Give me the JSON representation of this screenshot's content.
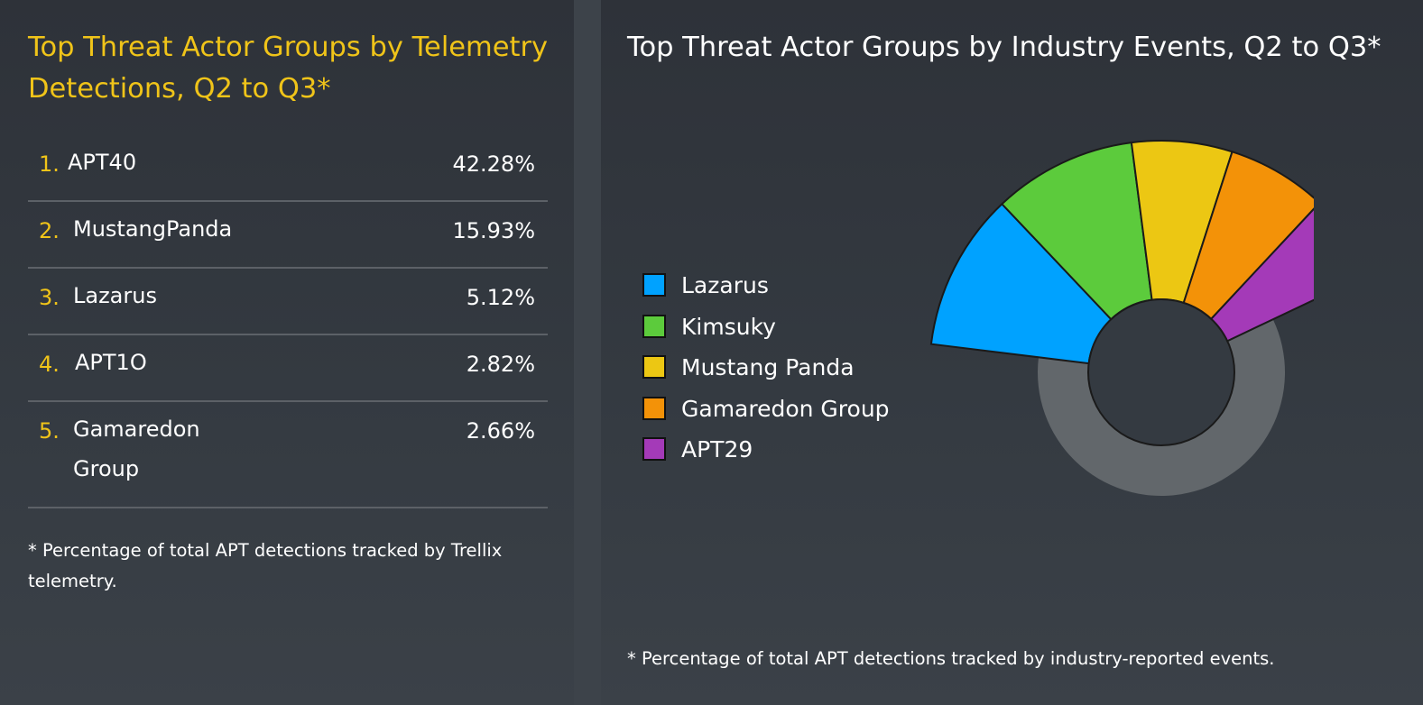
{
  "left": {
    "title": "Top Threat Actor Groups by Telemetry Detections, Q2 to Q3*",
    "rows": [
      {
        "rank": "1.",
        "name": "APT40",
        "value": "42.28%"
      },
      {
        "rank": "2.",
        "name": "MustangPanda",
        "value": "15.93%"
      },
      {
        "rank": "3.",
        "name": "Lazarus",
        "value": "5.12%"
      },
      {
        "rank": "4.",
        "name": "APT1O",
        "value": "2.82%"
      },
      {
        "rank": "5.",
        "name": "Gamaredon Group",
        "value": "2.66%"
      }
    ],
    "footnote": "* Percentage of total APT detections tracked by Trellix telemetry."
  },
  "right": {
    "title": "Top Threat Actor Groups by Industry Events, Q2 to Q3*",
    "footnote": "* Percentage of total APT detections tracked by industry-reported events."
  },
  "colors": {
    "accent": "#f0c419",
    "remainder": "#62676b"
  },
  "chart_data": {
    "type": "pie",
    "style": "donut with exploded leading slices",
    "legend_position": "left",
    "legend_names": [
      "Lazarus",
      "Kimsuky",
      "Mustang Panda",
      "Gamaredon Group",
      "APT29"
    ],
    "slices": [
      {
        "name": "Lazarus",
        "value": 11,
        "color": "#00a2ff"
      },
      {
        "name": "Kimsuky",
        "value": 10,
        "color": "#5ccb3c"
      },
      {
        "name": "Mustang Panda",
        "value": 7,
        "color": "#ecc713"
      },
      {
        "name": "Gamaredon Group",
        "value": 7,
        "color": "#f39208"
      },
      {
        "name": "APT29",
        "value": 6,
        "color": "#a43ab8"
      }
    ],
    "remainder": {
      "value": 59,
      "color": "#62676b"
    }
  }
}
